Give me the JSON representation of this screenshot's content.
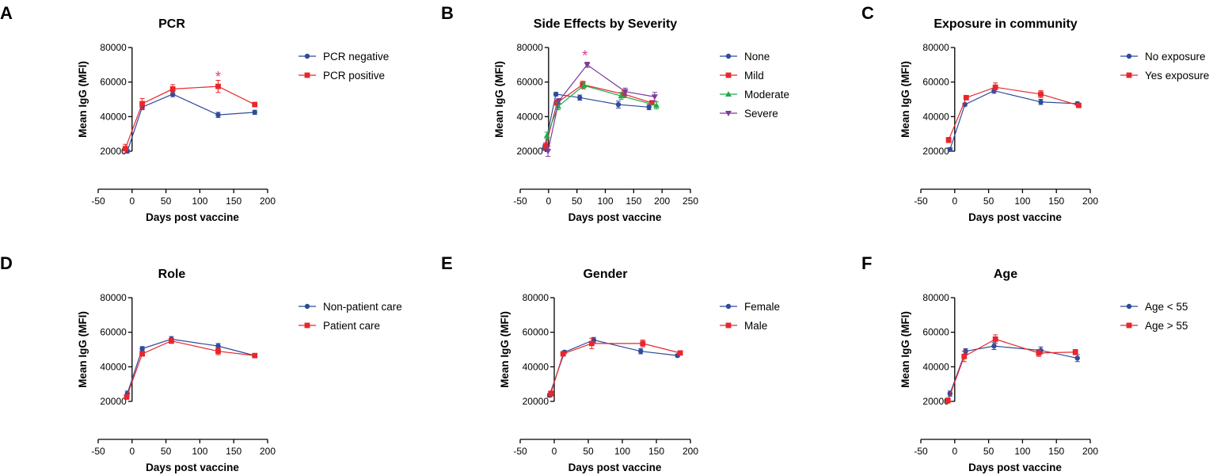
{
  "chart_data": [
    {
      "type": "line",
      "panel": "A",
      "title": "PCR",
      "xlabel": "Days post vaccine",
      "ylabel": "Mean IgG  (MFI)",
      "xlim": [
        -50,
        200
      ],
      "xticks": [
        -50,
        0,
        50,
        100,
        150,
        200
      ],
      "ylim": [
        20000,
        80000
      ],
      "yticks": [
        20000,
        40000,
        60000,
        80000
      ],
      "series": [
        {
          "name": "PCR negative",
          "color": "#2f4b9b",
          "marker": "circle",
          "x": [
            -7,
            15,
            60,
            127,
            181
          ],
          "y": [
            20000,
            45500,
            53000,
            41000,
            42500
          ],
          "err": [
            1000,
            1500,
            1500,
            1500,
            1200
          ]
        },
        {
          "name": "PCR positive",
          "color": "#e8262b",
          "marker": "square",
          "x": [
            -10,
            15,
            60,
            127,
            181
          ],
          "y": [
            21500,
            47500,
            56000,
            57500,
            47000
          ],
          "err": [
            2500,
            3000,
            2500,
            3500,
            1200
          ]
        }
      ],
      "annotations": [
        {
          "text": "*",
          "x": 127,
          "y": 64000,
          "color": "#e0338a"
        }
      ]
    },
    {
      "type": "line",
      "panel": "B",
      "title": "Side Effects by Severity",
      "xlabel": "Days post vaccine",
      "ylabel": "Mean IgG  (MFI)",
      "xlim": [
        -50,
        250
      ],
      "xticks": [
        -50,
        0,
        50,
        100,
        150,
        200,
        250
      ],
      "ylim": [
        20000,
        80000
      ],
      "yticks": [
        20000,
        40000,
        60000,
        80000
      ],
      "series": [
        {
          "name": "None",
          "color": "#2f4b9b",
          "marker": "circle",
          "x": [
            -7,
            13,
            55,
            123,
            177
          ],
          "y": [
            22000,
            53000,
            51000,
            47000,
            45500
          ],
          "err": [
            1500,
            1000,
            1500,
            2000,
            1500
          ]
        },
        {
          "name": "Mild",
          "color": "#e8262b",
          "marker": "square",
          "x": [
            -5,
            15,
            60,
            133,
            182
          ],
          "y": [
            23000,
            48000,
            58500,
            53000,
            48000
          ],
          "err": [
            2000,
            1500,
            2000,
            2000,
            1000
          ]
        },
        {
          "name": "Moderate",
          "color": "#1fad4a",
          "marker": "triangle-up",
          "x": [
            -3,
            17,
            62,
            128,
            190
          ],
          "y": [
            29000,
            46000,
            58000,
            52000,
            46500
          ],
          "err": [
            2000,
            2000,
            2000,
            2000,
            2000
          ]
        },
        {
          "name": "Severe",
          "color": "#7b3c9a",
          "marker": "triangle-down",
          "x": [
            -1,
            18,
            68,
            135,
            187
          ],
          "y": [
            20000,
            49000,
            70000,
            54500,
            51500
          ],
          "err": [
            3000,
            1500,
            1500,
            2000,
            2500
          ]
        }
      ],
      "annotations": [
        {
          "text": "*",
          "x": 64,
          "y": 76000,
          "color": "#e0338a"
        }
      ]
    },
    {
      "type": "line",
      "panel": "C",
      "title": "Exposure in community",
      "xlabel": "Days post vaccine",
      "ylabel": "Mean IgG  (MFI)",
      "xlim": [
        -50,
        200
      ],
      "xticks": [
        -50,
        0,
        50,
        100,
        150,
        200
      ],
      "ylim": [
        20000,
        80000
      ],
      "yticks": [
        20000,
        40000,
        60000,
        80000
      ],
      "series": [
        {
          "name": "No exposure",
          "color": "#2f4b9b",
          "marker": "circle",
          "x": [
            -7,
            15,
            58,
            127,
            181
          ],
          "y": [
            21000,
            47000,
            55000,
            48500,
            47500
          ],
          "err": [
            1000,
            800,
            1500,
            1500,
            1000
          ]
        },
        {
          "name": "Yes exposure",
          "color": "#e8262b",
          "marker": "square",
          "x": [
            -9,
            17,
            60,
            127,
            183
          ],
          "y": [
            26500,
            51000,
            57000,
            53000,
            46500
          ],
          "err": [
            1500,
            1200,
            2500,
            2000,
            1000
          ]
        }
      ]
    },
    {
      "type": "line",
      "panel": "D",
      "title": "Role",
      "xlabel": "Days post vaccine",
      "ylabel": "Mean IgG  (MFI)",
      "xlim": [
        -50,
        200
      ],
      "xticks": [
        -50,
        0,
        50,
        100,
        150,
        200
      ],
      "ylim": [
        20000,
        80000
      ],
      "yticks": [
        20000,
        40000,
        60000,
        80000
      ],
      "series": [
        {
          "name": "Non-patient care",
          "color": "#2f4b9b",
          "marker": "circle",
          "x": [
            -7,
            15,
            58,
            127,
            181
          ],
          "y": [
            24500,
            50500,
            56000,
            52000,
            46500
          ],
          "err": [
            1500,
            1200,
            1500,
            1500,
            1000
          ]
        },
        {
          "name": "Patient care",
          "color": "#e8262b",
          "marker": "square",
          "x": [
            -8,
            15,
            58,
            127,
            181
          ],
          "y": [
            22500,
            47500,
            55000,
            49000,
            46500
          ],
          "err": [
            1000,
            1200,
            1500,
            2000,
            1000
          ]
        }
      ]
    },
    {
      "type": "line",
      "panel": "E",
      "title": "Gender",
      "xlabel": "Days post vaccine",
      "ylabel": "Mean IgG  (MFI)",
      "xlim": [
        -50,
        200
      ],
      "xticks": [
        -50,
        0,
        50,
        100,
        150,
        200
      ],
      "ylim": [
        20000,
        80000
      ],
      "yticks": [
        20000,
        40000,
        60000,
        80000
      ],
      "series": [
        {
          "name": "Female",
          "color": "#2f4b9b",
          "marker": "circle",
          "x": [
            -7,
            15,
            58,
            127,
            181
          ],
          "y": [
            23500,
            48500,
            55500,
            49000,
            46500
          ],
          "err": [
            1000,
            800,
            1500,
            1500,
            800
          ]
        },
        {
          "name": "Male",
          "color": "#e8262b",
          "marker": "square",
          "x": [
            -5,
            13,
            55,
            130,
            185
          ],
          "y": [
            24500,
            47500,
            53500,
            53500,
            48000
          ],
          "err": [
            1500,
            1200,
            3000,
            2000,
            1200
          ]
        }
      ]
    },
    {
      "type": "line",
      "panel": "F",
      "title": "Age",
      "xlabel": "Days post vaccine",
      "ylabel": "Mean IgG  (MFI)",
      "xlim": [
        -50,
        200
      ],
      "xticks": [
        -50,
        0,
        50,
        100,
        150,
        200
      ],
      "ylim": [
        20000,
        80000
      ],
      "yticks": [
        20000,
        40000,
        60000,
        80000
      ],
      "series": [
        {
          "name": "Age < 55",
          "color": "#2f4b9b",
          "marker": "circle",
          "x": [
            -7,
            16,
            58,
            127,
            181
          ],
          "y": [
            24500,
            49000,
            52000,
            49500,
            45000
          ],
          "err": [
            1500,
            1500,
            2000,
            2000,
            2000
          ]
        },
        {
          "name": "Age > 55",
          "color": "#e8262b",
          "marker": "square",
          "x": [
            -10,
            14,
            60,
            124,
            178
          ],
          "y": [
            20500,
            46000,
            56000,
            48000,
            48500
          ],
          "err": [
            1500,
            3000,
            2500,
            2000,
            1500
          ]
        }
      ]
    }
  ]
}
